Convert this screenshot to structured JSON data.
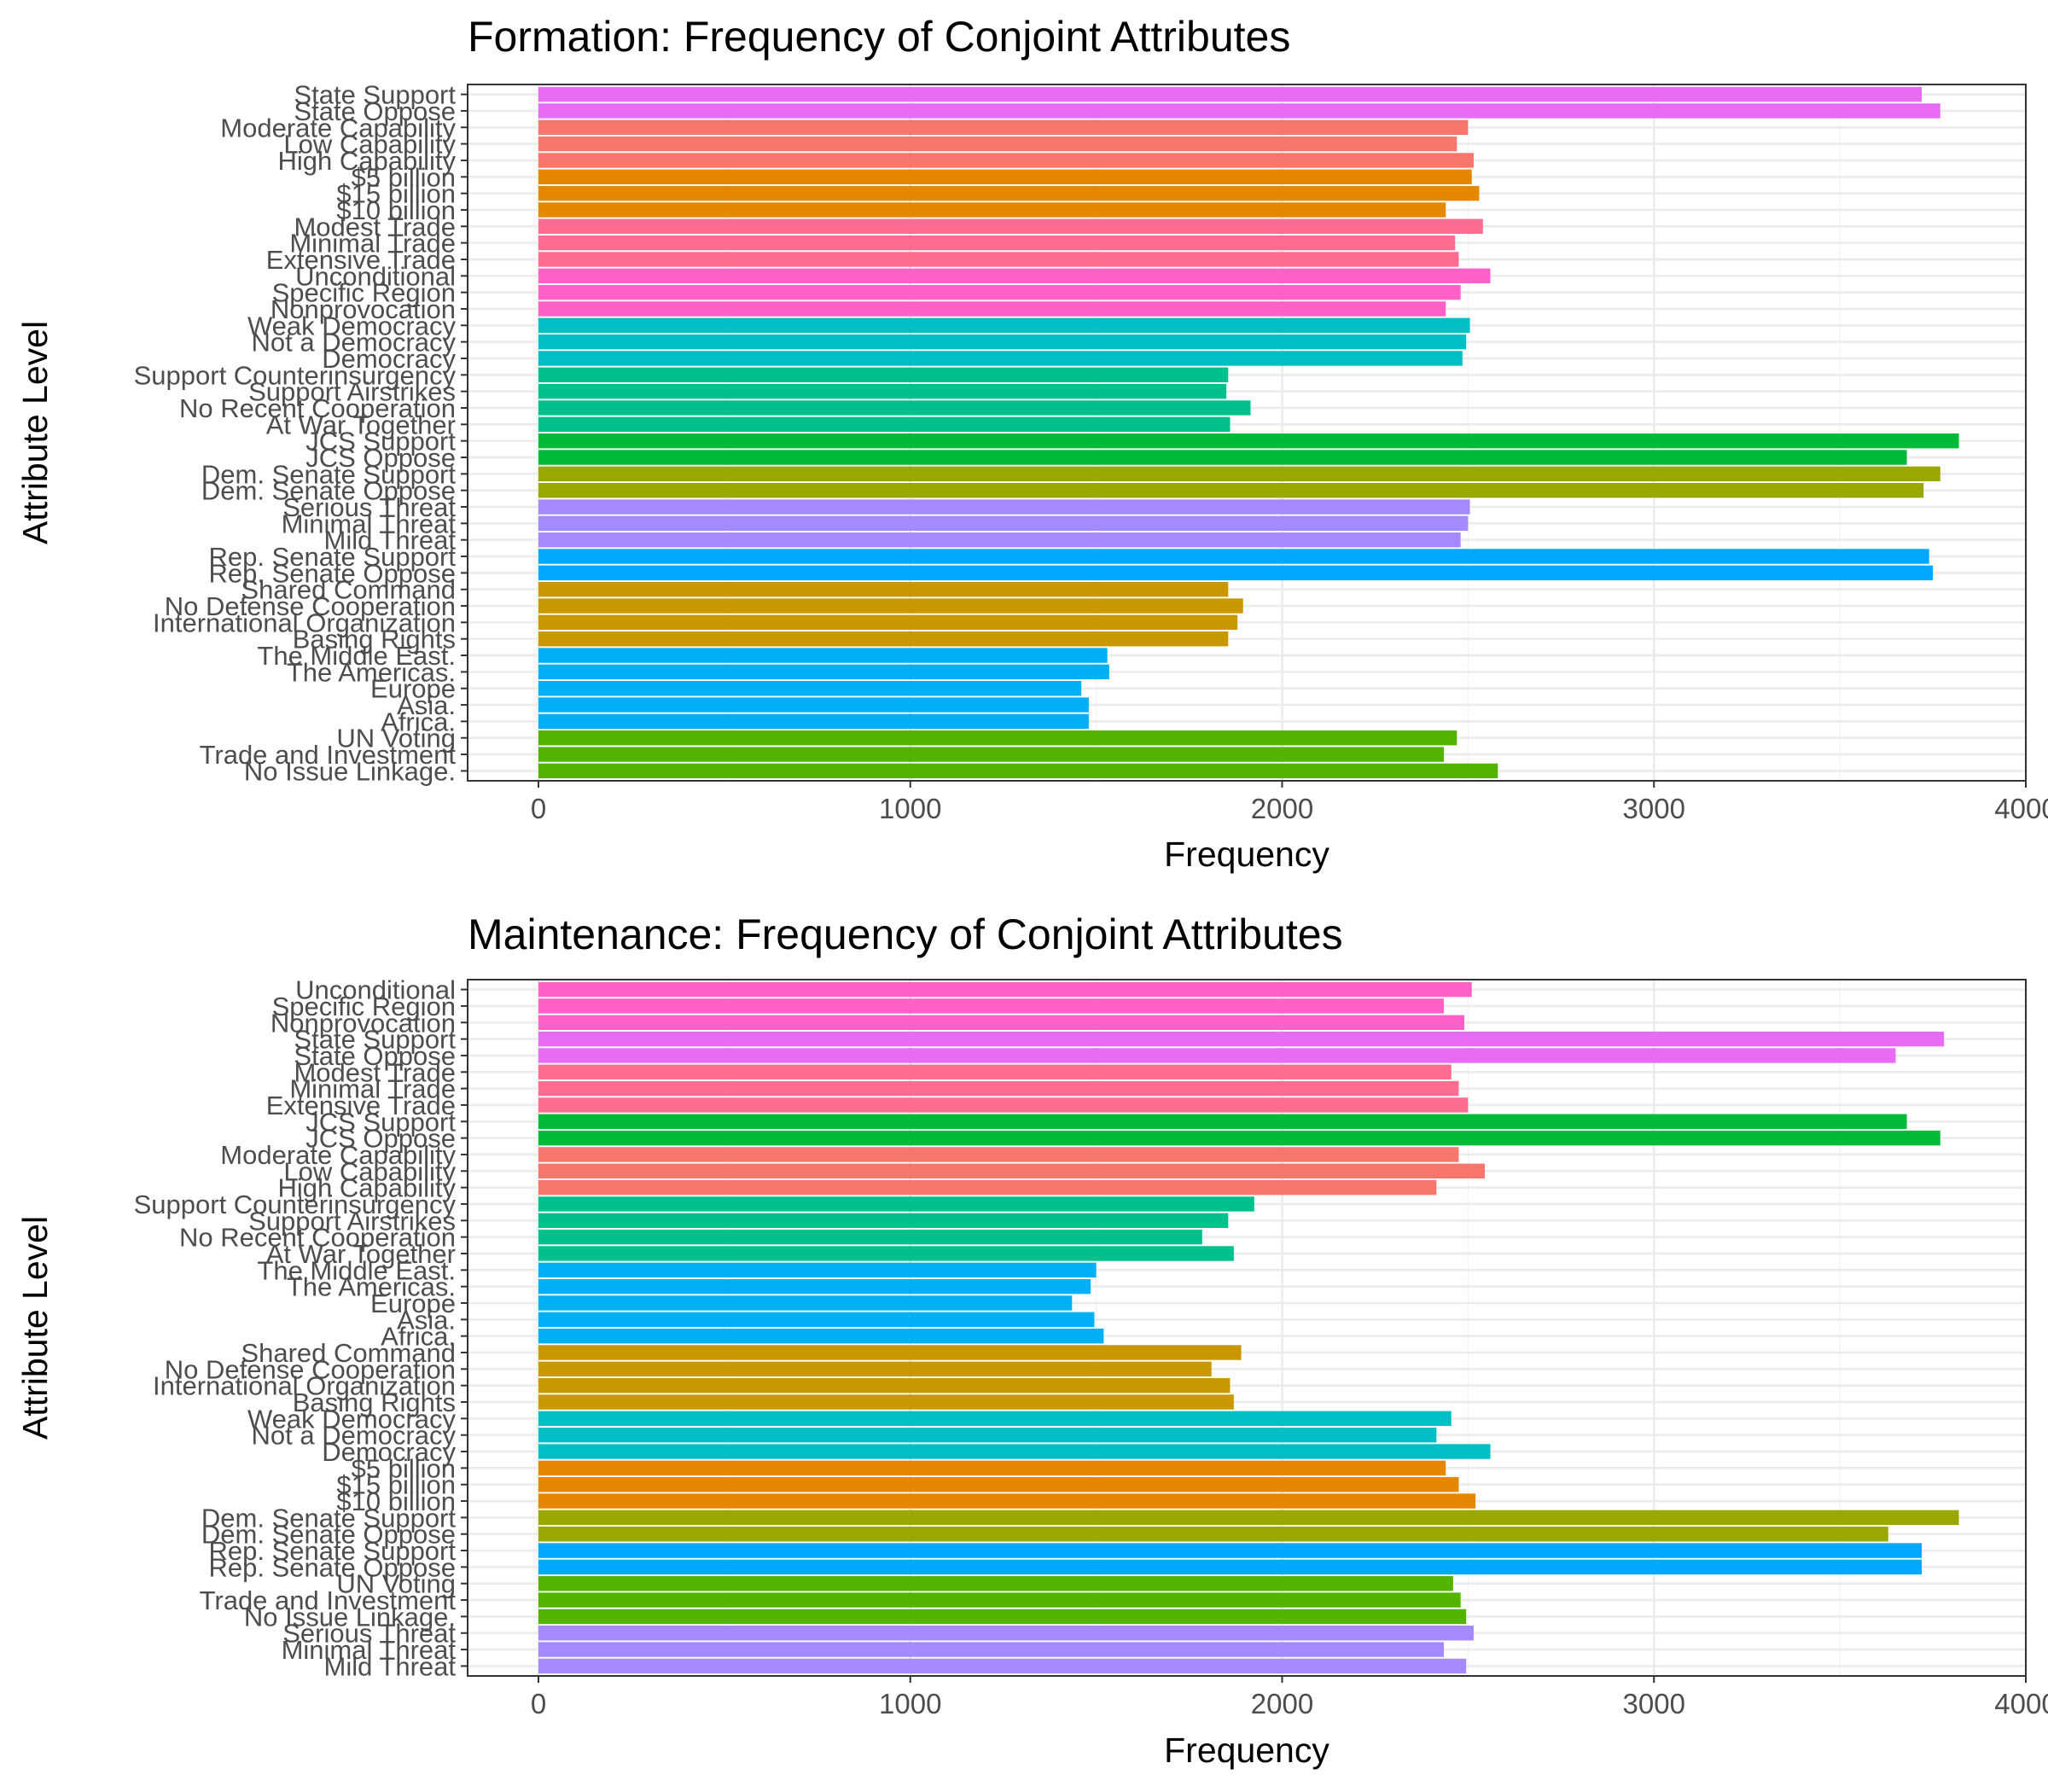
{
  "chart_data": [
    {
      "type": "bar",
      "orientation": "horizontal",
      "title": "Formation: Frequency of Conjoint Attributes",
      "xlabel": "Frequency",
      "ylabel": "Attribute Level",
      "xlim": [
        0,
        4000
      ],
      "xticks": [
        0,
        1000,
        2000,
        3000,
        4000
      ],
      "xtick_labels": [
        "0",
        "1000",
        "2000",
        "3000",
        "4000"
      ],
      "grid": true,
      "legend": "none",
      "categories": [
        "State Support",
        "State Oppose",
        "Moderate Capability",
        "Low Capability",
        "High Capability",
        "$5 billion",
        "$15 billion",
        "$10 billion",
        "Modest Trade",
        "Minimal Trade",
        "Extensive Trade",
        "Unconditional",
        "Specific Region",
        "Nonprovocation",
        "Weak Democracy",
        "Not a Democracy",
        "Democracy",
        "Support Counterinsurgency",
        "Support Airstrikes",
        "No Recent Cooperation",
        "At War Together",
        "JCS Support",
        "JCS Oppose",
        "Dem. Senate Support",
        "Dem. Senate Oppose",
        "Serious Threat",
        "Minimal Threat",
        "Mild Threat",
        "Rep. Senate Support",
        "Rep. Senate Oppose",
        "Shared Command",
        "No Defense Cooperation",
        "International Organization",
        "Basing Rights",
        "The Middle East.",
        "The Americas.",
        "Europe",
        "Asia.",
        "Africa.",
        "UN Voting",
        "Trade and Investment",
        "No Issue Linkage."
      ],
      "values": [
        3720,
        3770,
        2500,
        2470,
        2515,
        2510,
        2530,
        2440,
        2540,
        2465,
        2475,
        2560,
        2480,
        2440,
        2505,
        2495,
        2485,
        1855,
        1850,
        1915,
        1860,
        3820,
        3680,
        3770,
        3725,
        2505,
        2500,
        2480,
        3740,
        3750,
        1855,
        1895,
        1880,
        1855,
        1530,
        1535,
        1460,
        1480,
        1480,
        2470,
        2435,
        2580
      ],
      "colors": [
        "#E76BF3",
        "#E76BF3",
        "#F8766D",
        "#F8766D",
        "#F8766D",
        "#E58700",
        "#E58700",
        "#E58700",
        "#FF6C91",
        "#FF6C91",
        "#FF6C91",
        "#FF61C9",
        "#FF61C9",
        "#FF61C9",
        "#00BFC4",
        "#00BFC4",
        "#00BFC4",
        "#00C08B",
        "#00C08B",
        "#00C08B",
        "#00C08B",
        "#00BA38",
        "#00BA38",
        "#99A800",
        "#99A800",
        "#A58AFF",
        "#A58AFF",
        "#A58AFF",
        "#00A9FF",
        "#00A9FF",
        "#C99800",
        "#C99800",
        "#C99800",
        "#C99800",
        "#00B0F6",
        "#00B0F6",
        "#00B0F6",
        "#00B0F6",
        "#00B0F6",
        "#53B400",
        "#53B400",
        "#53B400"
      ]
    },
    {
      "type": "bar",
      "orientation": "horizontal",
      "title": "Maintenance: Frequency of Conjoint Attributes",
      "xlabel": "Frequency",
      "ylabel": "Attribute Level",
      "xlim": [
        0,
        4000
      ],
      "xticks": [
        0,
        1000,
        2000,
        3000,
        4000
      ],
      "xtick_labels": [
        "0",
        "1000",
        "2000",
        "3000",
        "4000"
      ],
      "grid": true,
      "legend": "none",
      "categories": [
        "Unconditional",
        "Specific Region",
        "Nonprovocation",
        "State Support",
        "State Oppose",
        "Modest Trade",
        "Minimal Trade",
        "Extensive Trade",
        "JCS Support",
        "JCS Oppose",
        "Moderate Capability",
        "Low Capability",
        "High Capability",
        "Support Counterinsurgency",
        "Support Airstrikes",
        "No Recent Cooperation",
        "At War Together",
        "The Middle East.",
        "The Americas.",
        "Europe",
        "Asia.",
        "Africa.",
        "Shared Command",
        "No Defense Cooperation",
        "International Organization",
        "Basing Rights",
        "Weak Democracy",
        "Not a Democracy",
        "Democracy",
        "$5 billion",
        "$15 billion",
        "$10 billion",
        "Dem. Senate Support",
        "Dem. Senate Oppose",
        "Rep. Senate Support",
        "Rep. Senate Oppose",
        "UN Voting",
        "Trade and Investment",
        "No Issue Linkage.",
        "Serious Threat",
        "Minimal Threat",
        "Mild Threat"
      ],
      "values": [
        2510,
        2435,
        2490,
        3780,
        3650,
        2455,
        2475,
        2500,
        3680,
        3770,
        2475,
        2545,
        2415,
        1925,
        1855,
        1785,
        1870,
        1500,
        1485,
        1435,
        1495,
        1520,
        1890,
        1810,
        1860,
        1870,
        2455,
        2415,
        2560,
        2440,
        2475,
        2520,
        3820,
        3630,
        3720,
        3720,
        2460,
        2480,
        2495,
        2515,
        2435,
        2495
      ],
      "colors": [
        "#FF61C9",
        "#FF61C9",
        "#FF61C9",
        "#E76BF3",
        "#E76BF3",
        "#FF6C91",
        "#FF6C91",
        "#FF6C91",
        "#00BA38",
        "#00BA38",
        "#F8766D",
        "#F8766D",
        "#F8766D",
        "#00C08B",
        "#00C08B",
        "#00C08B",
        "#00C08B",
        "#00B0F6",
        "#00B0F6",
        "#00B0F6",
        "#00B0F6",
        "#00B0F6",
        "#C99800",
        "#C99800",
        "#C99800",
        "#C99800",
        "#00BFC4",
        "#00BFC4",
        "#00BFC4",
        "#E58700",
        "#E58700",
        "#E58700",
        "#99A800",
        "#99A800",
        "#00A9FF",
        "#00A9FF",
        "#53B400",
        "#53B400",
        "#53B400",
        "#A58AFF",
        "#A58AFF",
        "#A58AFF"
      ]
    }
  ]
}
